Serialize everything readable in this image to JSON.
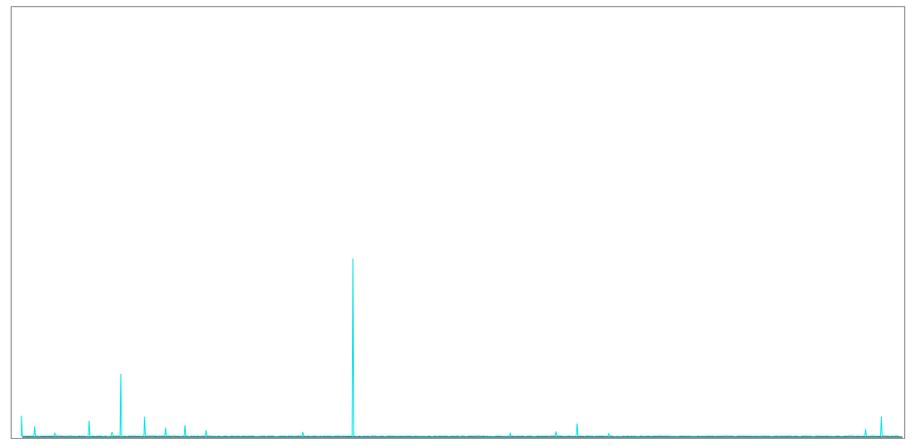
{
  "chart_data": {
    "type": "line",
    "title": "",
    "xlabel": "",
    "ylabel": "",
    "grid": false,
    "legend": "none",
    "line_color": "#00e5e5",
    "frame_color": "#888888",
    "baseline_color": "#2a2a2a",
    "xlim": [
      0,
      1000
    ],
    "ylim": [
      0,
      100
    ],
    "series": [
      {
        "peaks": [
          {
            "x": 0,
            "y": 5
          },
          {
            "x": 15,
            "y": 2.5
          },
          {
            "x": 38,
            "y": 1
          },
          {
            "x": 77,
            "y": 3.8
          },
          {
            "x": 103,
            "y": 1.2
          },
          {
            "x": 113,
            "y": 14.8
          },
          {
            "x": 140,
            "y": 4.8
          },
          {
            "x": 164,
            "y": 2.2
          },
          {
            "x": 186,
            "y": 2.8
          },
          {
            "x": 210,
            "y": 1.6
          },
          {
            "x": 320,
            "y": 1.2
          },
          {
            "x": 377,
            "y": 41.7
          },
          {
            "x": 556,
            "y": 0.9
          },
          {
            "x": 608,
            "y": 1.3
          },
          {
            "x": 632,
            "y": 3.2
          },
          {
            "x": 668,
            "y": 0.8
          },
          {
            "x": 960,
            "y": 1.9
          },
          {
            "x": 978,
            "y": 4.8
          }
        ]
      }
    ]
  }
}
